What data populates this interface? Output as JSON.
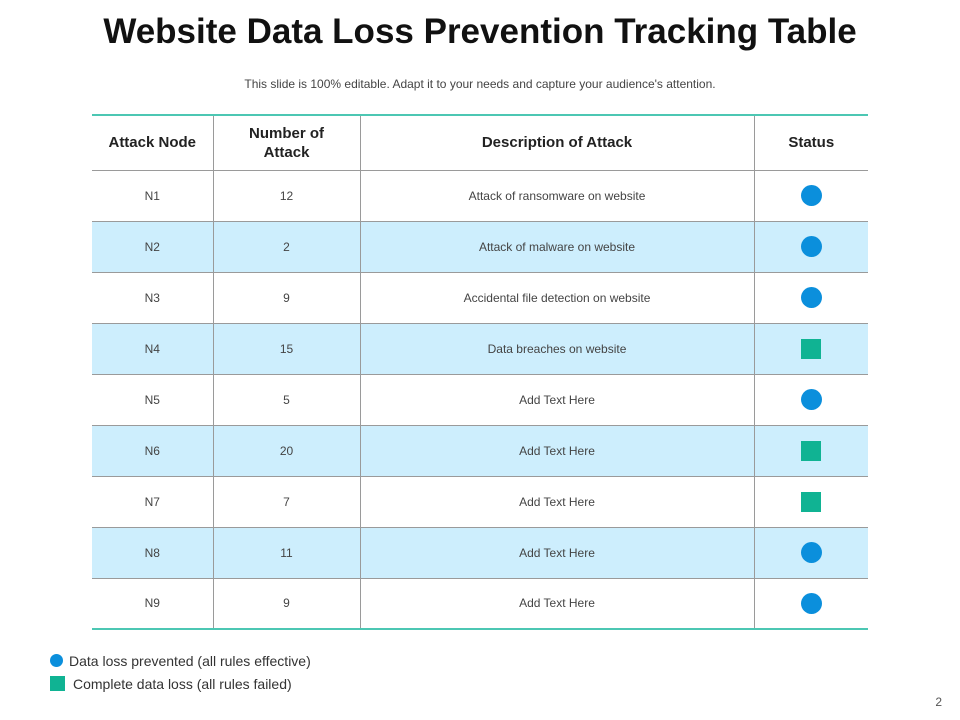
{
  "slide": {
    "title": "Website Data Loss Prevention Tracking Table",
    "subtitle": "This slide is 100% editable. Adapt it to your needs and capture your audience's attention.",
    "page_number": "2"
  },
  "table": {
    "headers": [
      "Attack Node",
      "Number of Attack",
      "Description of Attack",
      "Status"
    ],
    "rows": [
      {
        "node": "N1",
        "count": "12",
        "description": "Attack of ransomware  on website",
        "status": "prevented"
      },
      {
        "node": "N2",
        "count": "2",
        "description": "Attack of malware  on website",
        "status": "prevented"
      },
      {
        "node": "N3",
        "count": "9",
        "description": "Accidental file detection on website",
        "status": "prevented"
      },
      {
        "node": "N4",
        "count": "15",
        "description": "Data  breaches  on website",
        "status": "loss"
      },
      {
        "node": "N5",
        "count": "5",
        "description": "Add Text  Here",
        "status": "prevented"
      },
      {
        "node": "N6",
        "count": "20",
        "description": "Add Text  Here",
        "status": "loss"
      },
      {
        "node": "N7",
        "count": "7",
        "description": "Add Text  Here",
        "status": "loss"
      },
      {
        "node": "N8",
        "count": "11",
        "description": "Add Text  Here",
        "status": "prevented"
      },
      {
        "node": "N9",
        "count": "9",
        "description": "Add Text  Here",
        "status": "prevented"
      }
    ]
  },
  "legend": {
    "prevented_label": "Data loss prevented (all rules effective)",
    "loss_label": "Complete data loss (all rules failed)"
  },
  "colors": {
    "prevented": "#0b8fdc",
    "loss": "#10b393",
    "alt_row": "#cdeefd",
    "rule": "#4cc7b3"
  },
  "icons": {
    "prevented": "blue-circle-icon",
    "loss": "green-square-icon"
  }
}
